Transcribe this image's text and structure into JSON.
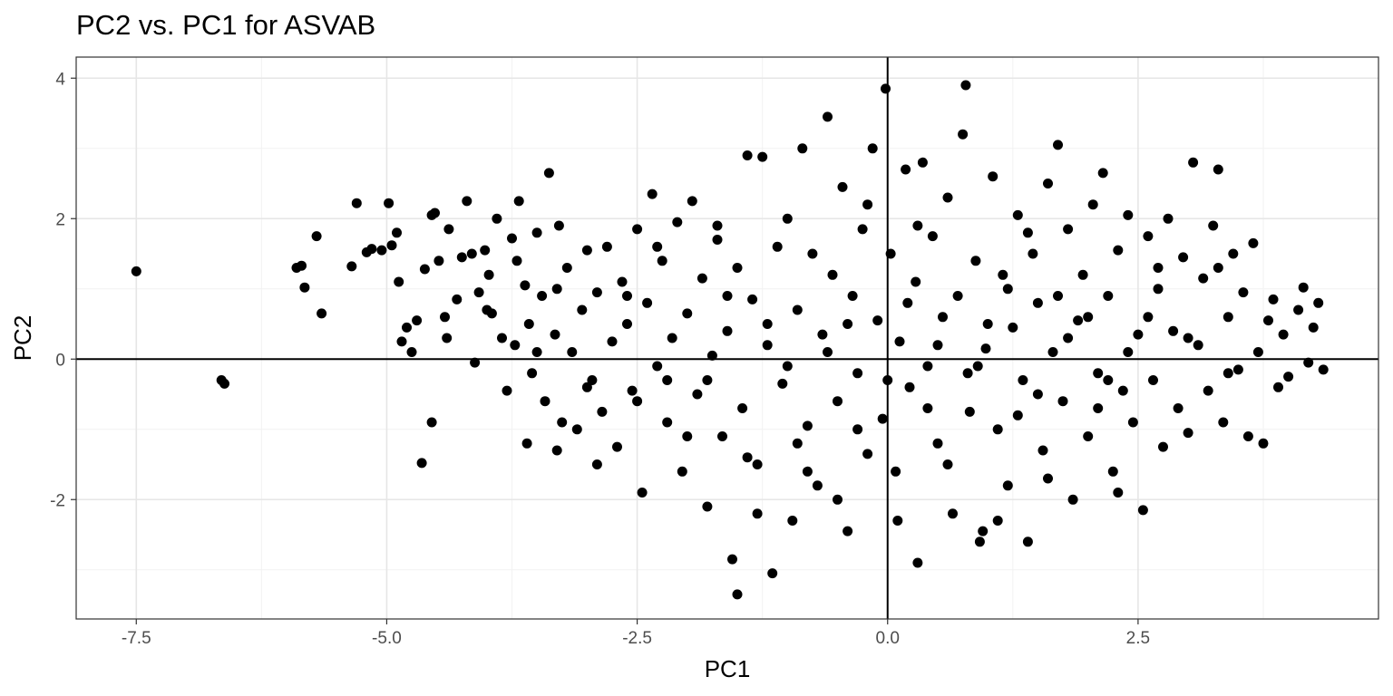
{
  "chart_data": {
    "type": "scatter",
    "title": "PC2 vs. PC1 for ASVAB",
    "xlabel": "PC1",
    "ylabel": "PC2",
    "xlim": [
      -8.1,
      4.9
    ],
    "ylim": [
      -3.7,
      4.3
    ],
    "x_ticks": [
      -7.5,
      -5.0,
      -2.5,
      0.0,
      2.5
    ],
    "x_tick_labels": [
      "-7.5",
      "-5.0",
      "-2.5",
      "0.0",
      "2.5"
    ],
    "y_ticks": [
      -2,
      0,
      2,
      4
    ],
    "y_tick_labels": [
      "-2",
      "0",
      "2",
      "4"
    ],
    "reference_lines": {
      "x": 0,
      "y": 0
    },
    "grid": true,
    "point_color": "#000000",
    "points": [
      [
        -7.5,
        1.25
      ],
      [
        -6.65,
        -0.3
      ],
      [
        -6.62,
        -0.35
      ],
      [
        -5.9,
        1.3
      ],
      [
        -5.85,
        1.33
      ],
      [
        -5.82,
        1.02
      ],
      [
        -5.7,
        1.75
      ],
      [
        -5.65,
        0.65
      ],
      [
        -5.35,
        1.32
      ],
      [
        -5.3,
        2.22
      ],
      [
        -5.2,
        1.52
      ],
      [
        -5.15,
        1.57
      ],
      [
        -5.05,
        1.55
      ],
      [
        -4.98,
        2.22
      ],
      [
        -4.95,
        1.62
      ],
      [
        -4.9,
        1.8
      ],
      [
        -4.88,
        1.1
      ],
      [
        -4.85,
        0.25
      ],
      [
        -4.8,
        0.45
      ],
      [
        -4.75,
        0.1
      ],
      [
        -4.7,
        0.55
      ],
      [
        -4.62,
        1.28
      ],
      [
        -4.55,
        2.05
      ],
      [
        -4.52,
        2.08
      ],
      [
        -4.48,
        1.4
      ],
      [
        -4.42,
        0.6
      ],
      [
        -4.38,
        1.85
      ],
      [
        -4.3,
        0.85
      ],
      [
        -4.25,
        1.45
      ],
      [
        -4.2,
        2.25
      ],
      [
        -4.15,
        1.5
      ],
      [
        -4.12,
        -0.05
      ],
      [
        -4.08,
        0.95
      ],
      [
        -4.02,
        1.55
      ],
      [
        -3.98,
        1.2
      ],
      [
        -3.95,
        0.65
      ],
      [
        -3.9,
        2.0
      ],
      [
        -3.85,
        0.3
      ],
      [
        -3.8,
        -0.45
      ],
      [
        -3.75,
        1.72
      ],
      [
        -3.72,
        0.2
      ],
      [
        -3.68,
        2.25
      ],
      [
        -3.62,
        1.05
      ],
      [
        -3.58,
        0.5
      ],
      [
        -3.55,
        -0.2
      ],
      [
        -3.5,
        1.8
      ],
      [
        -3.45,
        0.9
      ],
      [
        -3.42,
        -0.6
      ],
      [
        -3.38,
        2.65
      ],
      [
        -3.32,
        0.35
      ],
      [
        -3.28,
        1.9
      ],
      [
        -3.25,
        -0.9
      ],
      [
        -3.2,
        1.3
      ],
      [
        -3.15,
        0.1
      ],
      [
        -3.1,
        -1.0
      ],
      [
        -3.05,
        0.7
      ],
      [
        -3.0,
        1.55
      ],
      [
        -2.95,
        -0.3
      ],
      [
        -2.9,
        0.95
      ],
      [
        -2.85,
        -0.75
      ],
      [
        -2.8,
        1.6
      ],
      [
        -2.75,
        0.25
      ],
      [
        -2.7,
        -1.25
      ],
      [
        -2.65,
        1.1
      ],
      [
        -2.6,
        0.5
      ],
      [
        -2.55,
        -0.45
      ],
      [
        -2.5,
        1.85
      ],
      [
        -2.45,
        -1.9
      ],
      [
        -2.4,
        0.8
      ],
      [
        -2.35,
        2.35
      ],
      [
        -2.3,
        -0.1
      ],
      [
        -2.25,
        1.4
      ],
      [
        -2.2,
        -0.9
      ],
      [
        -2.15,
        0.3
      ],
      [
        -2.1,
        1.95
      ],
      [
        -2.05,
        -1.6
      ],
      [
        -2.0,
        0.65
      ],
      [
        -1.95,
        2.25
      ],
      [
        -1.9,
        -0.5
      ],
      [
        -1.85,
        1.15
      ],
      [
        -1.8,
        -2.1
      ],
      [
        -1.75,
        0.05
      ],
      [
        -1.7,
        1.7
      ],
      [
        -1.65,
        -1.1
      ],
      [
        -1.6,
        0.4
      ],
      [
        -1.55,
        -2.85
      ],
      [
        -1.5,
        1.3
      ],
      [
        -1.45,
        -0.7
      ],
      [
        -1.4,
        2.9
      ],
      [
        -1.35,
        0.85
      ],
      [
        -1.3,
        -1.5
      ],
      [
        -1.25,
        2.88
      ],
      [
        -1.2,
        0.2
      ],
      [
        -1.15,
        -3.05
      ],
      [
        -1.1,
        1.6
      ],
      [
        -1.05,
        -0.35
      ],
      [
        -1.0,
        2.0
      ],
      [
        -0.95,
        -2.3
      ],
      [
        -0.9,
        0.7
      ],
      [
        -0.85,
        3.0
      ],
      [
        -0.8,
        -0.95
      ],
      [
        -0.75,
        1.5
      ],
      [
        -0.7,
        -1.8
      ],
      [
        -0.65,
        0.35
      ],
      [
        -0.6,
        3.45
      ],
      [
        -0.55,
        1.2
      ],
      [
        -0.5,
        -0.6
      ],
      [
        -0.45,
        2.45
      ],
      [
        -0.4,
        -2.45
      ],
      [
        -0.35,
        0.9
      ],
      [
        -0.3,
        -0.2
      ],
      [
        -0.25,
        1.85
      ],
      [
        -0.2,
        -1.35
      ],
      [
        -0.15,
        3.0
      ],
      [
        -0.1,
        0.55
      ],
      [
        -0.05,
        -0.85
      ],
      [
        -0.02,
        3.85
      ],
      [
        0.03,
        1.5
      ],
      [
        0.08,
        -1.6
      ],
      [
        0.12,
        0.25
      ],
      [
        0.18,
        2.7
      ],
      [
        0.22,
        -0.4
      ],
      [
        0.28,
        1.1
      ],
      [
        0.3,
        -2.9
      ],
      [
        0.35,
        2.8
      ],
      [
        0.4,
        -0.1
      ],
      [
        0.45,
        1.75
      ],
      [
        0.5,
        -1.2
      ],
      [
        0.55,
        0.6
      ],
      [
        0.6,
        2.3
      ],
      [
        0.65,
        -2.2
      ],
      [
        0.7,
        0.9
      ],
      [
        0.75,
        3.2
      ],
      [
        0.78,
        3.9
      ],
      [
        0.82,
        -0.75
      ],
      [
        0.88,
        1.4
      ],
      [
        0.92,
        -2.6
      ],
      [
        0.98,
        0.15
      ],
      [
        1.05,
        2.6
      ],
      [
        1.1,
        -1.0
      ],
      [
        1.15,
        1.2
      ],
      [
        1.2,
        -1.8
      ],
      [
        1.25,
        0.45
      ],
      [
        1.3,
        2.05
      ],
      [
        1.35,
        -0.3
      ],
      [
        1.4,
        -2.6
      ],
      [
        1.45,
        1.5
      ],
      [
        1.5,
        0.8
      ],
      [
        1.55,
        -1.3
      ],
      [
        1.6,
        2.5
      ],
      [
        1.65,
        0.1
      ],
      [
        1.7,
        3.05
      ],
      [
        1.75,
        -0.6
      ],
      [
        1.8,
        1.85
      ],
      [
        1.85,
        -2.0
      ],
      [
        1.9,
        0.55
      ],
      [
        1.95,
        1.2
      ],
      [
        2.0,
        -1.1
      ],
      [
        2.05,
        2.2
      ],
      [
        2.1,
        -0.2
      ],
      [
        2.15,
        2.65
      ],
      [
        2.2,
        0.9
      ],
      [
        2.25,
        -1.6
      ],
      [
        2.3,
        1.55
      ],
      [
        2.35,
        -0.45
      ],
      [
        2.4,
        2.05
      ],
      [
        2.45,
        -0.9
      ],
      [
        2.5,
        0.35
      ],
      [
        2.55,
        -2.15
      ],
      [
        2.6,
        1.75
      ],
      [
        2.65,
        -0.3
      ],
      [
        2.7,
        1.0
      ],
      [
        2.75,
        -1.25
      ],
      [
        2.8,
        2.0
      ],
      [
        2.85,
        0.4
      ],
      [
        2.9,
        -0.7
      ],
      [
        2.95,
        1.45
      ],
      [
        3.0,
        -1.05
      ],
      [
        3.05,
        2.8
      ],
      [
        3.1,
        0.2
      ],
      [
        3.15,
        1.15
      ],
      [
        3.2,
        -0.45
      ],
      [
        3.25,
        1.9
      ],
      [
        3.3,
        2.7
      ],
      [
        3.35,
        -0.9
      ],
      [
        3.4,
        0.6
      ],
      [
        3.45,
        1.5
      ],
      [
        3.5,
        -0.15
      ],
      [
        3.55,
        0.95
      ],
      [
        3.6,
        -1.1
      ],
      [
        3.65,
        1.65
      ],
      [
        3.7,
        0.1
      ],
      [
        3.75,
        -1.2
      ],
      [
        3.8,
        0.55
      ],
      [
        3.85,
        0.85
      ],
      [
        3.9,
        -0.4
      ],
      [
        3.95,
        0.35
      ],
      [
        4.0,
        -0.25
      ],
      [
        4.1,
        0.7
      ],
      [
        4.15,
        1.02
      ],
      [
        4.2,
        -0.05
      ],
      [
        4.25,
        0.45
      ],
      [
        4.3,
        0.8
      ],
      [
        4.35,
        -0.15
      ],
      [
        -2.0,
        -1.1
      ],
      [
        -1.8,
        -0.3
      ],
      [
        -1.4,
        -1.4
      ],
      [
        -1.2,
        0.5
      ],
      [
        -0.9,
        -1.2
      ],
      [
        -0.6,
        0.1
      ],
      [
        -0.3,
        -1.0
      ],
      [
        0.0,
        -0.3
      ],
      [
        0.2,
        0.8
      ],
      [
        0.5,
        0.2
      ],
      [
        0.8,
        -0.2
      ],
      [
        1.0,
        0.5
      ],
      [
        1.2,
        1.0
      ],
      [
        1.5,
        -0.5
      ],
      [
        1.8,
        0.3
      ],
      [
        2.0,
        0.6
      ],
      [
        2.2,
        -0.3
      ],
      [
        2.4,
        0.1
      ],
      [
        -3.5,
        0.1
      ],
      [
        -3.0,
        -0.4
      ],
      [
        -2.6,
        0.9
      ],
      [
        -2.2,
        -0.3
      ],
      [
        -1.6,
        0.9
      ],
      [
        -1.0,
        -0.1
      ],
      [
        -0.4,
        0.5
      ],
      [
        0.4,
        -0.7
      ],
      [
        0.9,
        -0.1
      ],
      [
        1.3,
        -0.8
      ],
      [
        1.7,
        0.9
      ],
      [
        2.1,
        -0.7
      ],
      [
        2.6,
        0.6
      ],
      [
        3.0,
        0.3
      ],
      [
        3.4,
        -0.2
      ],
      [
        -4.4,
        0.3
      ],
      [
        -4.0,
        0.7
      ],
      [
        -3.7,
        1.4
      ],
      [
        -3.3,
        1.0
      ],
      [
        -2.9,
        -1.5
      ],
      [
        -2.5,
        -0.6
      ],
      [
        -1.3,
        -2.2
      ],
      [
        -0.8,
        -1.6
      ],
      [
        0.6,
        -1.5
      ],
      [
        1.1,
        -2.3
      ],
      [
        1.6,
        -1.7
      ],
      [
        2.3,
        -1.9
      ],
      [
        0.3,
        1.9
      ],
      [
        -0.2,
        2.2
      ],
      [
        1.4,
        1.8
      ],
      [
        -1.7,
        1.9
      ],
      [
        -2.3,
        1.6
      ],
      [
        2.7,
        1.3
      ],
      [
        3.3,
        1.3
      ],
      [
        -4.65,
        -1.48
      ],
      [
        -4.55,
        -0.9
      ],
      [
        -1.5,
        -3.35
      ],
      [
        -0.5,
        -2.0
      ],
      [
        0.1,
        -2.3
      ],
      [
        0.95,
        -2.45
      ],
      [
        -3.6,
        -1.2
      ],
      [
        -3.3,
        -1.3
      ]
    ]
  }
}
